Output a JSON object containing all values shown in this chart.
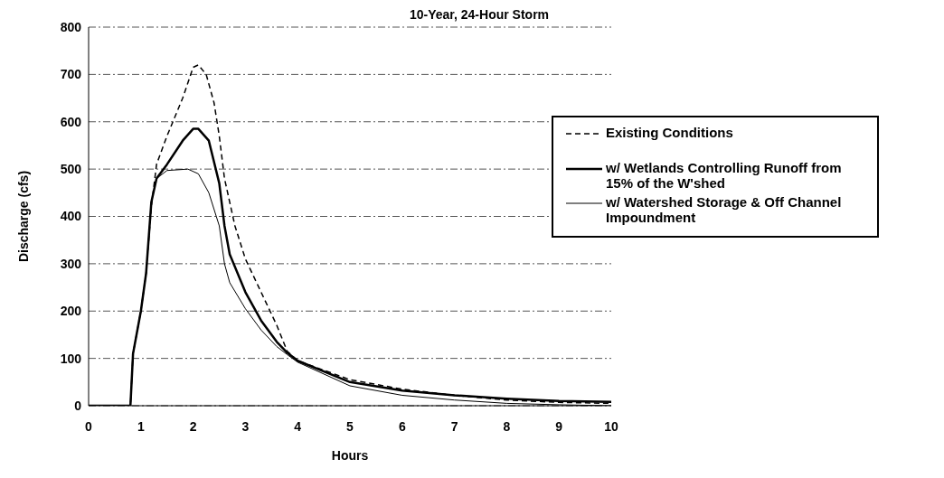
{
  "chart_data": {
    "type": "line",
    "title": "10-Year, 24-Hour Storm",
    "xlabel": "Hours",
    "ylabel": "Discharge (cfs)",
    "xlim": [
      0,
      10
    ],
    "xticks": [
      0,
      1,
      2,
      3,
      4,
      5,
      6,
      7,
      8,
      9,
      10
    ],
    "ylim": [
      0,
      800
    ],
    "yticks": [
      0,
      100,
      200,
      300,
      400,
      500,
      600,
      700,
      800
    ],
    "grid": "y",
    "legend": "top right",
    "marker": "none",
    "series": [
      {
        "name": "Existing Conditions",
        "color": "#000000",
        "line_style": "dashed",
        "x": [
          0,
          0.8,
          0.85,
          1.0,
          1.1,
          1.2,
          1.3,
          1.5,
          1.8,
          2.0,
          2.1,
          2.25,
          2.4,
          2.5,
          2.6,
          2.8,
          3.0,
          3.3,
          3.6,
          3.8,
          4,
          5,
          6,
          7,
          8,
          9,
          10
        ],
        "values": [
          0,
          0,
          110,
          200,
          280,
          420,
          510,
          570,
          650,
          715,
          720,
          700,
          640,
          570,
          480,
          380,
          310,
          240,
          170,
          115,
          95,
          55,
          35,
          22,
          12,
          7,
          5
        ]
      },
      {
        "name": "w/ Wetlands Controlling Runoff from 15% of the W'shed",
        "color": "#000000",
        "line_style": "solid",
        "x": [
          0,
          0.8,
          0.85,
          1.0,
          1.1,
          1.2,
          1.3,
          1.5,
          1.8,
          2.0,
          2.1,
          2.3,
          2.5,
          2.6,
          2.7,
          3.0,
          3.3,
          3.6,
          3.8,
          4,
          5,
          6,
          7,
          8,
          9,
          10
        ],
        "values": [
          0,
          0,
          110,
          200,
          280,
          430,
          480,
          510,
          560,
          585,
          585,
          560,
          470,
          380,
          320,
          240,
          180,
          135,
          112,
          95,
          50,
          32,
          22,
          15,
          10,
          8
        ]
      },
      {
        "name": "w/ Watershed Storage & Off Channel Impoundment",
        "color": "#000000",
        "line_style": "solid",
        "x": [
          0,
          0.8,
          0.85,
          1.0,
          1.1,
          1.2,
          1.3,
          1.5,
          1.9,
          2.1,
          2.3,
          2.5,
          2.6,
          2.7,
          3.0,
          3.3,
          3.6,
          3.8,
          4,
          5,
          6,
          7,
          8,
          9,
          10
        ],
        "values": [
          0,
          0,
          110,
          200,
          280,
          430,
          480,
          497,
          500,
          490,
          450,
          380,
          300,
          260,
          205,
          160,
          125,
          108,
          92,
          42,
          22,
          12,
          5,
          2,
          0
        ]
      }
    ]
  }
}
